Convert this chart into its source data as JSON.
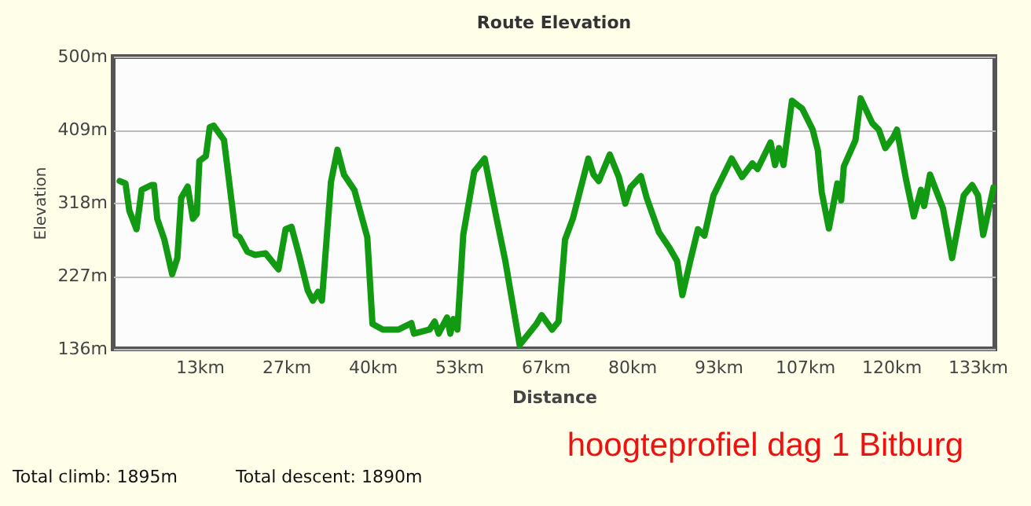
{
  "chart_data": {
    "type": "line",
    "title": "Route Elevation",
    "xlabel": "Distance",
    "ylabel": "Elevation",
    "annotations": [
      "hoogteprofiel dag 1 Bitburg",
      "Total climb: 1895m",
      "Total descent: 1890m"
    ],
    "xlim": [
      0,
      136
    ],
    "ylim": [
      136,
      500
    ],
    "xticks": [
      {
        "value": 13.33,
        "label": "13km"
      },
      {
        "value": 26.67,
        "label": "27km"
      },
      {
        "value": 40,
        "label": "40km"
      },
      {
        "value": 53.33,
        "label": "53km"
      },
      {
        "value": 66.67,
        "label": "67km"
      },
      {
        "value": 80,
        "label": "80km"
      },
      {
        "value": 93.33,
        "label": "93km"
      },
      {
        "value": 106.67,
        "label": "107km"
      },
      {
        "value": 120,
        "label": "120km"
      },
      {
        "value": 133.33,
        "label": "133km"
      }
    ],
    "yticks": [
      {
        "value": 136,
        "label": "136m"
      },
      {
        "value": 227,
        "label": "227m"
      },
      {
        "value": 318,
        "label": "318m"
      },
      {
        "value": 409,
        "label": "409m"
      },
      {
        "value": 500,
        "label": "500m"
      }
    ],
    "grid": "y",
    "legend": false,
    "marker": "none",
    "line_style": "solid",
    "series": [
      {
        "color": "#129a12",
        "x": [
          1.0,
          1.9,
          2.5,
          3.6,
          4.4,
          5.9,
          6.3,
          6.8,
          7.9,
          9.1,
          9.9,
          10.5,
          11.5,
          12.3,
          12.9,
          13.3,
          14.3,
          14.9,
          15.5,
          17.1,
          18.6,
          18.9,
          19.5,
          20.7,
          21.9,
          23.5,
          25.5,
          26.6,
          27.5,
          28.7,
          30.0,
          30.8,
          31.6,
          32.2,
          33.6,
          34.6,
          35.6,
          37.2,
          39.2,
          40.0,
          41.6,
          44.0,
          46.0,
          46.4,
          48.8,
          49.6,
          50.2,
          51.5,
          52.0,
          52.5,
          53.1,
          54.0,
          55.7,
          57.3,
          59.0,
          60.5,
          62.7,
          65.3,
          66.1,
          67.7,
          68.7,
          69.7,
          70.9,
          73.3,
          74.1,
          74.9,
          76.6,
          78.0,
          79.0,
          79.8,
          81.4,
          82.3,
          84.2,
          85.8,
          87.0,
          87.8,
          89.0,
          90.2,
          91.2,
          92.6,
          95.4,
          97.0,
          98.6,
          99.4,
          101.4,
          102.1,
          102.7,
          103.4,
          104.7,
          106.3,
          107.9,
          108.7,
          109.3,
          110.4,
          111.7,
          112.3,
          112.7,
          114.5,
          115.3,
          117.1,
          118.1,
          119.1,
          120.3,
          120.9,
          122.3,
          123.5,
          124.6,
          125.1,
          126.0,
          128.0,
          129.4,
          131.2,
          132.5,
          133.4,
          134.2,
          135.8
        ],
        "values": [
          345,
          342,
          308,
          285,
          334,
          340,
          340,
          298,
          272,
          229,
          249,
          324,
          338,
          298,
          304,
          370,
          376,
          412,
          414,
          396,
          298,
          278,
          275,
          257,
          253,
          255,
          235,
          285,
          288,
          252,
          209,
          196,
          207,
          196,
          344,
          384,
          353,
          334,
          275,
          167,
          160,
          160,
          168,
          155,
          160,
          170,
          155,
          175,
          155,
          173,
          160,
          278,
          357,
          373,
          304,
          245,
          141,
          167,
          178,
          160,
          170,
          272,
          298,
          373,
          353,
          345,
          378,
          350,
          317,
          337,
          351,
          324,
          281,
          262,
          245,
          203,
          245,
          285,
          277,
          327,
          373,
          350,
          367,
          360,
          393,
          365,
          386,
          365,
          445,
          435,
          409,
          383,
          331,
          286,
          342,
          321,
          363,
          396,
          448,
          417,
          409,
          386,
          399,
          409,
          347,
          301,
          334,
          314,
          353,
          311,
          249,
          327,
          340,
          327,
          278,
          337
        ]
      }
    ]
  }
}
